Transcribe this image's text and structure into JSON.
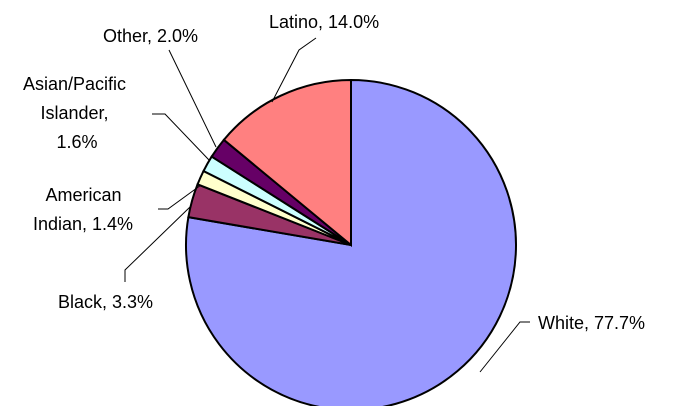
{
  "chart_data": {
    "type": "pie",
    "title": "",
    "slices": [
      {
        "name": "White",
        "value": 77.7,
        "label": "White, 77.7%",
        "color": "#9999ff"
      },
      {
        "name": "Black",
        "value": 3.3,
        "label": "Black, 3.3%",
        "color": "#993366"
      },
      {
        "name": "American Indian",
        "value": 1.4,
        "label_lines": [
          "American",
          "Indian, 1.4%"
        ],
        "color": "#ffffcc"
      },
      {
        "name": "Asian/Pacific Islander",
        "value": 1.6,
        "label_lines": [
          "Asian/Pacific",
          "Islander,",
          "1.6%"
        ],
        "color": "#ccffff"
      },
      {
        "name": "Other",
        "value": 2.0,
        "label": "Other, 2.0%",
        "color": "#660066"
      },
      {
        "name": "Latino",
        "value": 14.0,
        "label": "Latino, 14.0%",
        "color": "#ff8080"
      }
    ]
  }
}
